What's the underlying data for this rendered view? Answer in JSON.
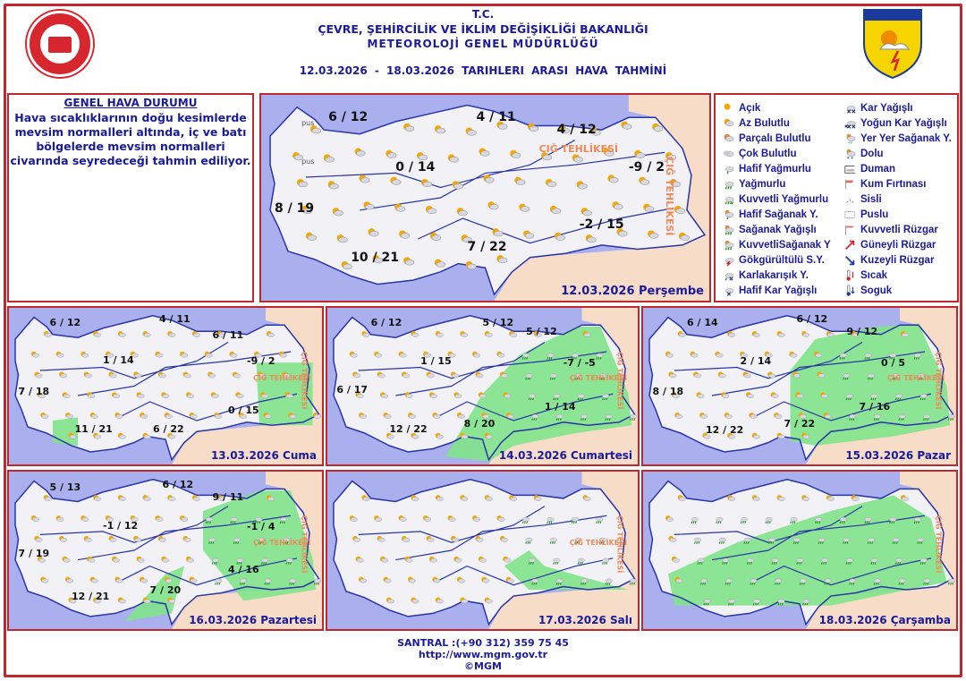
{
  "header": {
    "line1": "T.C.",
    "line2": "ÇEVRE, ŞEHİRCİLİK VE İKLİM DEĞİŞİKLİĞİ BAKANLIĞI",
    "line3": "METEOROLOJİ  GENEL  MÜDÜRLÜĞÜ",
    "line4": "12.03.2026  -  18.03.2026   TARIHLERI  ARASI  HAVA  TAHMİNİ",
    "logo_right": "METEOROLOJİ"
  },
  "general": {
    "title": "GENEL HAVA DURUMU",
    "text": "Hava sıcaklıklarının doğu kesimlerde mevsim normalleri altında, iç ve batı bölgelerde mevsim normalleri civarında seyredeceği tahmin ediliyor."
  },
  "legend": [
    {
      "label": "Açık",
      "icon": "sun-icon"
    },
    {
      "label": "Az Bulutlu",
      "icon": "sun-cloud-icon"
    },
    {
      "label": "Parçalı Bulutlu",
      "icon": "partly-cloudy-icon"
    },
    {
      "label": "Çok Bulutlu",
      "icon": "cloud-icon"
    },
    {
      "label": "Hafif Yağmurlu",
      "icon": "light-rain-icon"
    },
    {
      "label": "Yağmurlu",
      "icon": "rain-icon"
    },
    {
      "label": "Kuvvetli Yağmurlu",
      "icon": "heavy-rain-icon"
    },
    {
      "label": "Hafif Sağanak Y.",
      "icon": "light-shower-icon"
    },
    {
      "label": "Sağanak Yağışlı",
      "icon": "shower-icon"
    },
    {
      "label": "KuvvetliSağanak Y",
      "icon": "heavy-shower-icon"
    },
    {
      "label": "Gökgürültülü S.Y.",
      "icon": "thunder-icon"
    },
    {
      "label": "Karlakarışık Y.",
      "icon": "sleet-icon"
    },
    {
      "label": "Hafif Kar Yağışlı",
      "icon": "light-snow-icon"
    },
    {
      "label": "Kar Yağışlı",
      "icon": "snow-icon"
    },
    {
      "label": "Yoğun Kar Yağışlı",
      "icon": "heavy-snow-icon"
    },
    {
      "label": "Yer Yer Sağanak Y.",
      "icon": "local-shower-icon"
    },
    {
      "label": "Dolu",
      "icon": "hail-icon"
    },
    {
      "label": "Duman",
      "icon": "smoke-icon"
    },
    {
      "label": "Kum Fırtınası",
      "icon": "sandstorm-icon"
    },
    {
      "label": "Sisli",
      "icon": "fog-icon"
    },
    {
      "label": "Puslu",
      "icon": "haze-icon"
    },
    {
      "label": "Kuvvetli Rüzgar",
      "icon": "strong-wind-icon"
    },
    {
      "label": "Güneyli Rüzgar",
      "icon": "south-wind-arrow-icon"
    },
    {
      "label": "Kuzeyli Rüzgar",
      "icon": "north-wind-arrow-icon"
    },
    {
      "label": "Sıcak",
      "icon": "hot-thermometer-icon"
    },
    {
      "label": "Soguk",
      "icon": "cold-thermometer-icon"
    }
  ],
  "maps": [
    {
      "date": "12.03.2026 Perşembe",
      "temps": [
        "6 / 12",
        "4 / 11",
        "4 / 12",
        "0 / 14",
        "-9 / 2",
        "8 / 19",
        "-2 / 15",
        "7 / 22",
        "10 / 21"
      ],
      "warnings": [
        "ÇIĞ TEHLİKESİ",
        "ÇIĞ TEHLİKESİ"
      ],
      "other_labels": [
        "pus",
        "pus"
      ]
    },
    {
      "date": "13.03.2026 Cuma",
      "temps": [
        "6 / 12",
        "4 / 11",
        "6 / 11",
        "1 / 14",
        "-9 / 2",
        "7 / 18",
        "0 / 15",
        "11 / 21",
        "6 / 22"
      ],
      "warnings": [
        "ÇIĞ TEHLİKESİ",
        "ÇIĞ TEHLİKESİ"
      ]
    },
    {
      "date": "14.03.2026 Cumartesi",
      "temps": [
        "6 / 12",
        "5 / 12",
        "5 / 12",
        "1 / 15",
        "-7 / -5",
        "6 / 17",
        "1 / 14",
        "8 / 20",
        "12 / 22"
      ],
      "warnings": [
        "ÇIĞ TEHLİKESİ",
        "ÇIĞ TEHLİKESİ"
      ]
    },
    {
      "date": "15.03.2026 Pazar",
      "temps": [
        "6 / 14",
        "6 / 12",
        "9 / 12",
        "2 / 14",
        "0 / 5",
        "8 / 18",
        "7 / 16",
        "7 / 22",
        "12 / 22"
      ],
      "warnings": [
        "ÇIĞ TEHLİKESİ",
        "ÇIĞ TEHLİKESİ"
      ]
    },
    {
      "date": "16.03.2026 Pazartesi",
      "temps": [
        "5 / 13",
        "6 / 12",
        "9 / 11",
        "-1 / 12",
        "-1 / 4",
        "7 / 19",
        "4 / 16",
        "7 / 20",
        "12 / 21"
      ],
      "warnings": [
        "ÇIĞ TEHLİKESİ",
        "ÇIĞ TEHLİKESİ"
      ]
    },
    {
      "date": "17.03.2026 Salı",
      "temps": [],
      "warnings": [
        "ÇIĞ TEHLİKESİ",
        "ÇIĞ TEHLİKESİ"
      ]
    },
    {
      "date": "18.03.2026 Çarşamba",
      "temps": [],
      "warnings": [
        "ÇIĞ TEHLİKESİ"
      ]
    }
  ],
  "colors": {
    "sea": "#aab0ee",
    "land": "#f2f2f6",
    "neighbor": "#f7dcc8",
    "precip": "#7fe38a",
    "border": "#2a34a8",
    "frame": "#c0282d",
    "text": "#1a1a9c"
  },
  "footer": {
    "phone": "SANTRAL :(+90 312) 359 75 45",
    "url": "http://www.mgm.gov.tr",
    "copyright": "©MGM"
  }
}
